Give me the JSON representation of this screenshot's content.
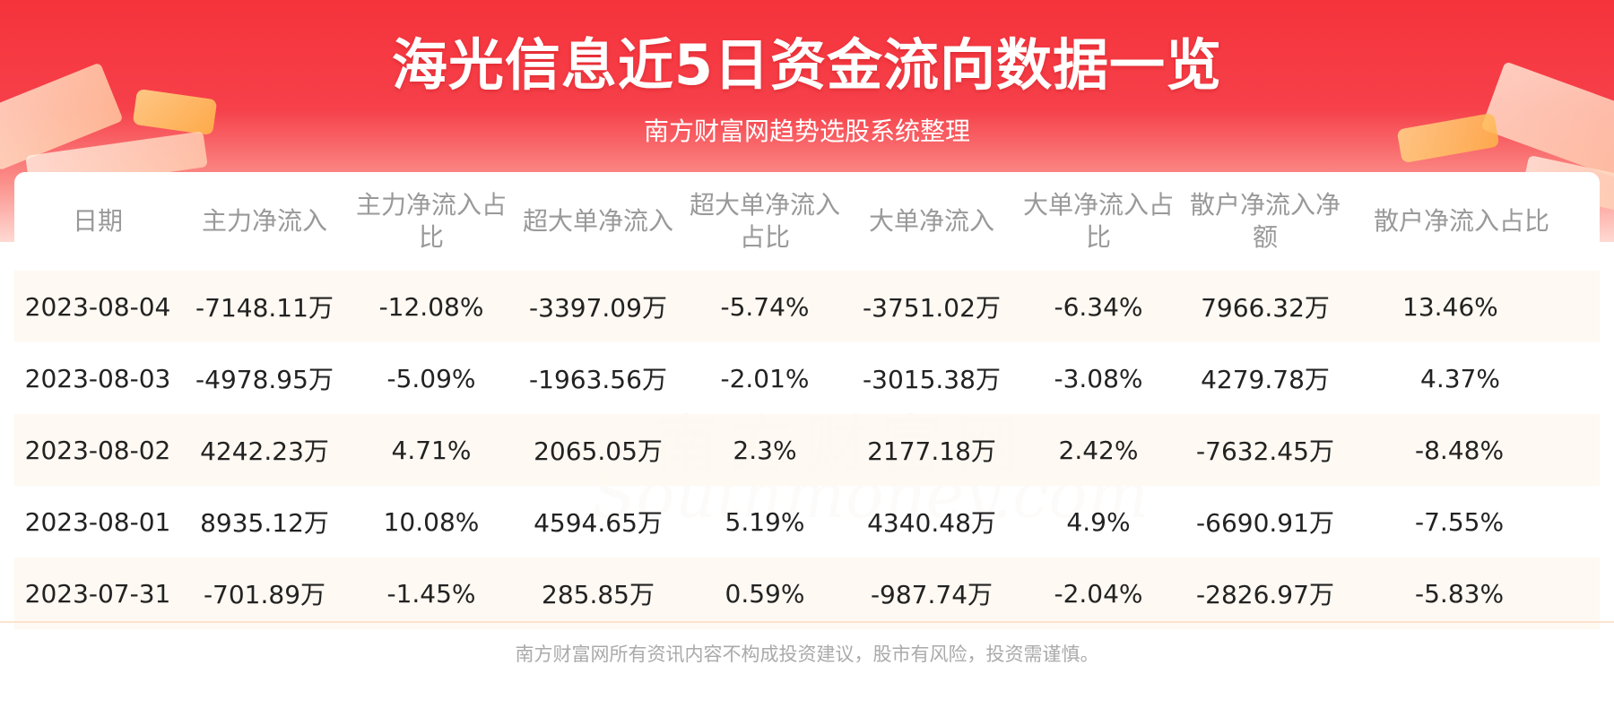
{
  "header": {
    "title": "海光信息近5日资金流向数据一览",
    "subtitle": "南方财富网趋势选股系统整理"
  },
  "watermark": {
    "cn": "南方财富网",
    "en": "Southmoney.com"
  },
  "table": {
    "columns": [
      "日期",
      "主力净流入",
      "主力净流入占比",
      "超大单净流入",
      "超大单净流入占比",
      "大单净流入",
      "大单净流入占比",
      "散户净流入净额",
      "散户净流入占比"
    ],
    "rows": [
      [
        "2023-08-04",
        "-7148.11万",
        "-12.08%",
        "-3397.09万",
        "-5.74%",
        "-3751.02万",
        "-6.34%",
        "7966.32万",
        "13.46%"
      ],
      [
        "2023-08-03",
        "-4978.95万",
        "-5.09%",
        "-1963.56万",
        "-2.01%",
        "-3015.38万",
        "-3.08%",
        "4279.78万",
        "4.37%"
      ],
      [
        "2023-08-02",
        "4242.23万",
        "4.71%",
        "2065.05万",
        "2.3%",
        "2177.18万",
        "2.42%",
        "-7632.45万",
        "-8.48%"
      ],
      [
        "2023-08-01",
        "8935.12万",
        "10.08%",
        "4594.65万",
        "5.19%",
        "4340.48万",
        "4.9%",
        "-6690.91万",
        "-7.55%"
      ],
      [
        "2023-07-31",
        "-701.89万",
        "-1.45%",
        "285.85万",
        "0.59%",
        "-987.74万",
        "-2.04%",
        "-2826.97万",
        "-5.83%"
      ]
    ]
  },
  "footer": {
    "disclaimer": "南方财富网所有资讯内容不构成投资建议，股市有风险，投资需谨慎。"
  }
}
